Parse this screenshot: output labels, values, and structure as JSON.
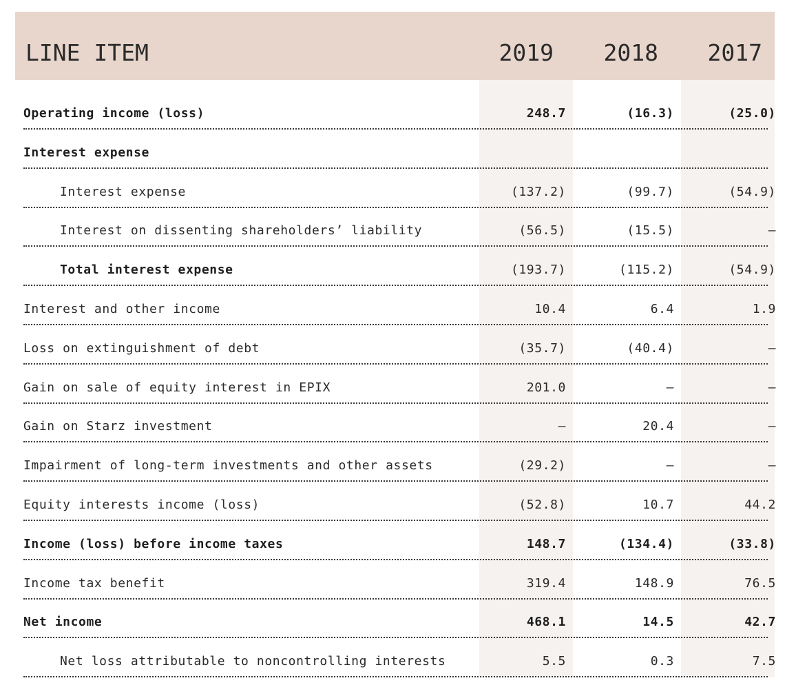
{
  "header": {
    "line_item": "LINE ITEM",
    "years": [
      "2019",
      "2018",
      "2017"
    ]
  },
  "rows": [
    {
      "label": "Operating income (loss)",
      "v2019": "248.7",
      "v2018": "(16.3)",
      "v2017": "(25.0)"
    },
    {
      "label": "Interest expense",
      "v2019": "",
      "v2018": "",
      "v2017": ""
    },
    {
      "label": "Interest expense",
      "v2019": "(137.2)",
      "v2018": "(99.7)",
      "v2017": "(54.9)"
    },
    {
      "label": "Interest on dissenting shareholders’ liability",
      "v2019": "(56.5)",
      "v2018": "(15.5)",
      "v2017": "–"
    },
    {
      "label": "Total interest expense",
      "v2019": "(193.7)",
      "v2018": "(115.2)",
      "v2017": "(54.9)"
    },
    {
      "label": "Interest and other income",
      "v2019": "10.4",
      "v2018": "6.4",
      "v2017": "1.9"
    },
    {
      "label": "Loss on extinguishment of debt",
      "v2019": "(35.7)",
      "v2018": "(40.4)",
      "v2017": "–"
    },
    {
      "label": "Gain on sale of equity interest in EPIX",
      "v2019": "201.0",
      "v2018": "–",
      "v2017": "–"
    },
    {
      "label": "Gain on Starz investment",
      "v2019": "–",
      "v2018": "20.4",
      "v2017": "–"
    },
    {
      "label": "Impairment of long-term investments and other assets",
      "v2019": "(29.2)",
      "v2018": "–",
      "v2017": "–"
    },
    {
      "label": "Equity interests income (loss)",
      "v2019": "(52.8)",
      "v2018": "10.7",
      "v2017": "44.2"
    },
    {
      "label": "Income (loss) before income taxes",
      "v2019": "148.7",
      "v2018": "(134.4)",
      "v2017": "(33.8)"
    },
    {
      "label": "Income tax benefit",
      "v2019": "319.4",
      "v2018": "148.9",
      "v2017": "76.5"
    },
    {
      "label": "Net income",
      "v2019": "468.1",
      "v2018": "14.5",
      "v2017": "42.7"
    },
    {
      "label": "Net loss attributable to noncontrolling interests",
      "v2019": "5.5",
      "v2018": "0.3",
      "v2017": "7.5"
    }
  ]
}
